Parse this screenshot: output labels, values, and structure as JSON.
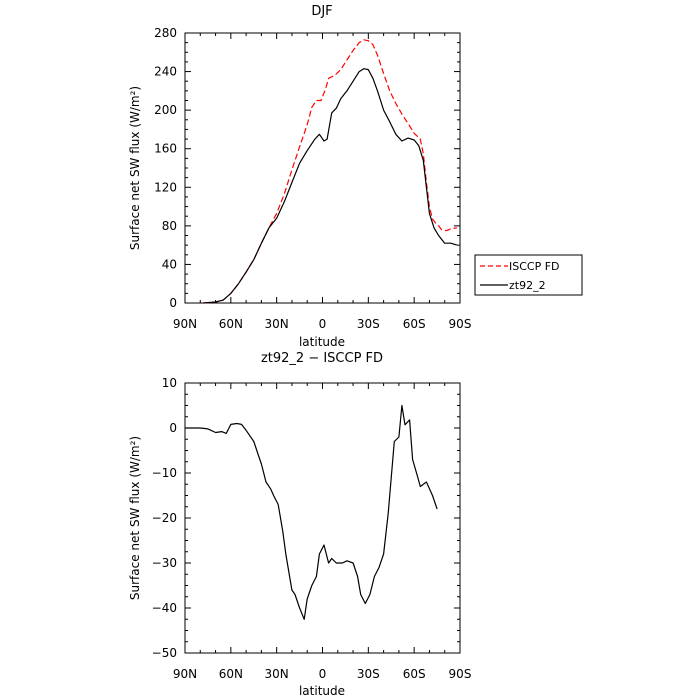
{
  "chart_data": [
    {
      "type": "line",
      "title": "DJF",
      "xlabel": "latitude",
      "ylabel": "Surface net SW flux (W/m²)",
      "xlim": [
        -90,
        90
      ],
      "ylim": [
        0,
        280
      ],
      "x_ticks": [
        -90,
        -60,
        -30,
        0,
        30,
        60,
        90
      ],
      "x_tick_labels": [
        "90N",
        "60N",
        "30N",
        "0",
        "30S",
        "60S",
        "90S"
      ],
      "y_ticks": [
        0,
        40,
        80,
        120,
        160,
        200,
        240,
        280
      ],
      "y_tick_labels": [
        "0",
        "40",
        "80",
        "120",
        "160",
        "200",
        "240",
        "280"
      ],
      "legend_position": "outside-right",
      "series": [
        {
          "name": "ISCCP FD",
          "color": "#ff0000",
          "dash": "dashed",
          "points": [
            [
              -78,
              0
            ],
            [
              -70,
              1
            ],
            [
              -65,
              3
            ],
            [
              -60,
              10
            ],
            [
              -55,
              20
            ],
            [
              -50,
              32
            ],
            [
              -45,
              45
            ],
            [
              -40,
              62
            ],
            [
              -35,
              78
            ],
            [
              -30,
              93
            ],
            [
              -25,
              113
            ],
            [
              -20,
              138
            ],
            [
              -15,
              162
            ],
            [
              -10,
              185
            ],
            [
              -7,
              203
            ],
            [
              -4,
              210
            ],
            [
              -1,
              210
            ],
            [
              2,
              222
            ],
            [
              4,
              233
            ],
            [
              8,
              236
            ],
            [
              12,
              242
            ],
            [
              16,
              252
            ],
            [
              20,
              262
            ],
            [
              24,
              270
            ],
            [
              27,
              273
            ],
            [
              30,
              272
            ],
            [
              33,
              268
            ],
            [
              36,
              257
            ],
            [
              40,
              238
            ],
            [
              44,
              220
            ],
            [
              48,
              207
            ],
            [
              52,
              196
            ],
            [
              56,
              186
            ],
            [
              60,
              176
            ],
            [
              64,
              170
            ],
            [
              66,
              155
            ],
            [
              68,
              125
            ],
            [
              70,
              100
            ],
            [
              72,
              87
            ],
            [
              74,
              83
            ],
            [
              76,
              80
            ],
            [
              78,
              76
            ],
            [
              81,
              75
            ],
            [
              84,
              77
            ],
            [
              88,
              78
            ]
          ]
        },
        {
          "name": "zt92_2",
          "color": "#000000",
          "dash": "solid",
          "points": [
            [
              -78,
              0
            ],
            [
              -70,
              1
            ],
            [
              -65,
              3
            ],
            [
              -60,
              10
            ],
            [
              -55,
              20
            ],
            [
              -50,
              32
            ],
            [
              -45,
              45
            ],
            [
              -40,
              62
            ],
            [
              -35,
              78
            ],
            [
              -30,
              88
            ],
            [
              -25,
              105
            ],
            [
              -20,
              125
            ],
            [
              -15,
              145
            ],
            [
              -10,
              158
            ],
            [
              -5,
              170
            ],
            [
              -2,
              175
            ],
            [
              1,
              168
            ],
            [
              3,
              170
            ],
            [
              6,
              197
            ],
            [
              9,
              202
            ],
            [
              12,
              212
            ],
            [
              16,
              220
            ],
            [
              20,
              230
            ],
            [
              24,
              240
            ],
            [
              27,
              243
            ],
            [
              30,
              242
            ],
            [
              33,
              233
            ],
            [
              36,
              220
            ],
            [
              40,
              200
            ],
            [
              44,
              188
            ],
            [
              48,
              175
            ],
            [
              52,
              168
            ],
            [
              56,
              171
            ],
            [
              60,
              169
            ],
            [
              63,
              163
            ],
            [
              66,
              148
            ],
            [
              68,
              120
            ],
            [
              70,
              93
            ],
            [
              73,
              78
            ],
            [
              76,
              70
            ],
            [
              80,
              62
            ],
            [
              84,
              62
            ],
            [
              88,
              60
            ]
          ]
        }
      ]
    },
    {
      "type": "line",
      "title": "zt92_2 − ISCCP FD",
      "xlabel": "latitude",
      "ylabel": "Surface net SW flux (W/m²)",
      "xlim": [
        -90,
        90
      ],
      "ylim": [
        -50,
        10
      ],
      "x_ticks": [
        -90,
        -60,
        -30,
        0,
        30,
        60,
        90
      ],
      "x_tick_labels": [
        "90N",
        "60N",
        "30N",
        "0",
        "30S",
        "60S",
        "90S"
      ],
      "y_ticks": [
        -50,
        -40,
        -30,
        -20,
        -10,
        0,
        10
      ],
      "y_tick_labels": [
        "−50",
        "−40",
        "−30",
        "−20",
        "−10",
        "0",
        "10"
      ],
      "series": [
        {
          "color": "#000000",
          "dash": "solid",
          "points": [
            [
              -90,
              0
            ],
            [
              -85,
              0
            ],
            [
              -80,
              0
            ],
            [
              -75,
              -0.2
            ],
            [
              -70,
              -1
            ],
            [
              -66,
              -0.8
            ],
            [
              -63,
              -1.2
            ],
            [
              -60,
              0.8
            ],
            [
              -56,
              1
            ],
            [
              -53,
              0.8
            ],
            [
              -50,
              -0.5
            ],
            [
              -48,
              -1.5
            ],
            [
              -45,
              -3
            ],
            [
              -42,
              -6
            ],
            [
              -40,
              -8
            ],
            [
              -37,
              -12
            ],
            [
              -34,
              -13.5
            ],
            [
              -32,
              -15
            ],
            [
              -29,
              -17
            ],
            [
              -26,
              -23
            ],
            [
              -24,
              -28
            ],
            [
              -20,
              -36
            ],
            [
              -18,
              -37
            ],
            [
              -15,
              -40
            ],
            [
              -12,
              -42.5
            ],
            [
              -10,
              -38
            ],
            [
              -7,
              -35
            ],
            [
              -4,
              -33
            ],
            [
              -2,
              -28
            ],
            [
              1,
              -26
            ],
            [
              4,
              -30
            ],
            [
              6,
              -29
            ],
            [
              9,
              -30
            ],
            [
              13,
              -30
            ],
            [
              16,
              -29.5
            ],
            [
              20,
              -30
            ],
            [
              23,
              -33
            ],
            [
              25,
              -37
            ],
            [
              28,
              -39
            ],
            [
              31,
              -37
            ],
            [
              34,
              -33
            ],
            [
              37,
              -31
            ],
            [
              40,
              -28
            ],
            [
              43,
              -19
            ],
            [
              47,
              -3
            ],
            [
              50,
              -2
            ],
            [
              52,
              5
            ],
            [
              54,
              0.7
            ],
            [
              57,
              1.8
            ],
            [
              59,
              -7
            ],
            [
              62,
              -10.5
            ],
            [
              64,
              -13
            ],
            [
              68,
              -12
            ],
            [
              72,
              -15
            ],
            [
              75,
              -18
            ]
          ]
        }
      ]
    }
  ]
}
